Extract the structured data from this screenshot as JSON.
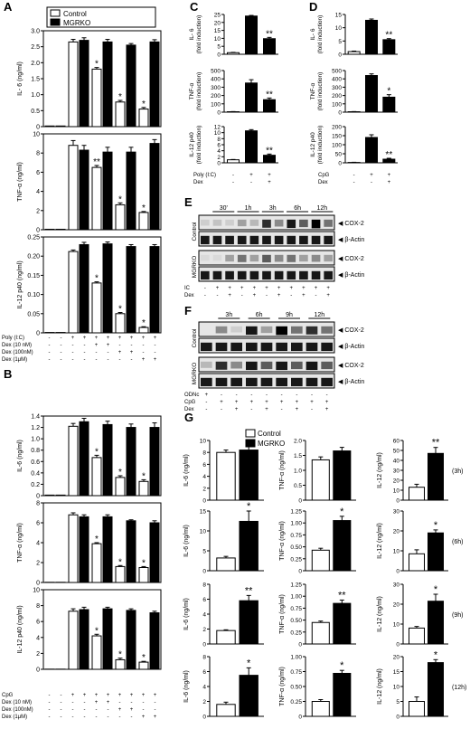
{
  "panels": {
    "A": "A",
    "B": "B",
    "C": "C",
    "D": "D",
    "E": "E",
    "F": "F",
    "G": "G"
  },
  "legend": {
    "control": "Control",
    "mgrko": "MGRKO"
  },
  "chart_data": [
    {
      "id": "A1",
      "type": "bar",
      "ylabel": "IL- 6 (ng/ml)",
      "ylim": [
        0,
        3.0
      ],
      "ticks": [
        "0",
        "0.5",
        "1.0",
        "1.5",
        "2.0",
        "2.5",
        "3.0"
      ],
      "series": [
        {
          "name": "Control",
          "values": [
            0.02,
            2.65,
            1.8,
            0.77,
            0.55
          ]
        },
        {
          "name": "MGRKO",
          "values": [
            0.02,
            2.7,
            2.65,
            2.55,
            2.65
          ]
        }
      ],
      "errors": [
        [
          0,
          0.08,
          0.05,
          0.05,
          0.05
        ],
        [
          0,
          0.08,
          0.08,
          0.05,
          0.07
        ]
      ],
      "stars": [
        "",
        "",
        "*",
        "*",
        "*"
      ]
    },
    {
      "id": "A2",
      "type": "bar",
      "ylabel": "TNF-α (ng/ml)",
      "ylim": [
        0,
        10
      ],
      "ticks": [
        "0",
        "2",
        "4",
        "6",
        "8",
        "10"
      ],
      "series": [
        {
          "name": "Control",
          "values": [
            0.05,
            8.8,
            6.5,
            2.6,
            1.8
          ]
        },
        {
          "name": "MGRKO",
          "values": [
            0.05,
            8.3,
            8.1,
            8.1,
            9.0
          ]
        }
      ],
      "errors": [
        [
          0,
          0.5,
          0.2,
          0.2,
          0.1
        ],
        [
          0,
          0.5,
          0.5,
          0.5,
          0.4
        ]
      ],
      "stars": [
        "",
        "",
        "**",
        "*",
        "*"
      ]
    },
    {
      "id": "A3",
      "type": "bar",
      "ylabel": "IL-12 p40 (ng/ml)",
      "ylim": [
        0,
        0.25
      ],
      "ticks": [
        "0",
        "0.05",
        "0.10",
        "0.15",
        "0.20",
        "0.25"
      ],
      "series": [
        {
          "name": "Control",
          "values": [
            0.001,
            0.212,
            0.13,
            0.05,
            0.014
          ]
        },
        {
          "name": "MGRKO",
          "values": [
            0.001,
            0.23,
            0.232,
            0.225,
            0.225
          ]
        }
      ],
      "errors": [
        [
          0,
          0.004,
          0.003,
          0.003,
          0.002
        ],
        [
          0,
          0.006,
          0.005,
          0.005,
          0.005
        ]
      ],
      "stars": [
        "",
        "",
        "*",
        "*",
        "*"
      ]
    },
    {
      "id": "B1",
      "type": "bar",
      "ylabel": "IL-6 (ng/ml)",
      "ylim": [
        0,
        1.4
      ],
      "ticks": [
        "0",
        "0.2",
        "0.4",
        "0.6",
        "0.8",
        "1.0",
        "1.2",
        "1.4"
      ],
      "series": [
        {
          "name": "Control",
          "values": [
            0.01,
            1.22,
            0.67,
            0.32,
            0.25
          ]
        },
        {
          "name": "MGRKO",
          "values": [
            0.01,
            1.3,
            1.25,
            1.2,
            1.2
          ]
        }
      ],
      "errors": [
        [
          0,
          0.05,
          0.04,
          0.03,
          0.03
        ],
        [
          0,
          0.06,
          0.06,
          0.06,
          0.08
        ]
      ],
      "stars": [
        "",
        "",
        "*",
        "*",
        "*"
      ]
    },
    {
      "id": "B2",
      "type": "bar",
      "ylabel": "TNF-α (ng/ml)",
      "ylim": [
        0,
        8
      ],
      "ticks": [
        "0",
        "2",
        "4",
        "6",
        "8"
      ],
      "series": [
        {
          "name": "Control",
          "values": [
            0.02,
            6.8,
            3.9,
            1.6,
            1.5
          ]
        },
        {
          "name": "MGRKO",
          "values": [
            0.02,
            6.6,
            6.6,
            6.2,
            6.0
          ]
        }
      ],
      "errors": [
        [
          0,
          0.2,
          0.1,
          0.1,
          0.1
        ],
        [
          0,
          0.2,
          0.2,
          0.1,
          0.2
        ]
      ],
      "stars": [
        "",
        "",
        "*",
        "*",
        "*"
      ]
    },
    {
      "id": "B3",
      "type": "bar",
      "ylabel": "IL-12 p40 (ng/ml)",
      "ylim": [
        0,
        10
      ],
      "ticks": [
        "0",
        "2",
        "4",
        "6",
        "8",
        "10"
      ],
      "series": [
        {
          "name": "Control",
          "values": [
            0.02,
            7.3,
            4.2,
            1.2,
            0.9
          ]
        },
        {
          "name": "MGRKO",
          "values": [
            0.02,
            7.5,
            7.6,
            7.4,
            7.1
          ]
        }
      ],
      "errors": [
        [
          0,
          0.3,
          0.2,
          0.2,
          0.1
        ],
        [
          0,
          0.3,
          0.2,
          0.2,
          0.2
        ]
      ],
      "stars": [
        "",
        "",
        "*",
        "*",
        "*"
      ]
    },
    {
      "id": "C1",
      "type": "bar",
      "ylabel": "IL- 6\n(fold induction)",
      "ylim": [
        0,
        25
      ],
      "ticks": [
        "0",
        "5",
        "10",
        "15",
        "20",
        "25"
      ],
      "values": [
        1,
        24,
        9.8
      ],
      "errors": [
        0.2,
        0.4,
        0.8
      ],
      "white": [
        true,
        false,
        false
      ],
      "stars": [
        "",
        "",
        "**"
      ]
    },
    {
      "id": "C2",
      "type": "bar",
      "ylabel": "TNF-α\n(fold induction)",
      "ylim": [
        0,
        500
      ],
      "ticks": [
        "0",
        "100",
        "200",
        "300",
        "400",
        "500"
      ],
      "values": [
        5,
        350,
        150
      ],
      "errors": [
        2,
        40,
        20
      ],
      "white": [
        true,
        false,
        false
      ],
      "stars": [
        "",
        "",
        "**"
      ]
    },
    {
      "id": "C3",
      "type": "bar",
      "ylabel": "IL-12 p40\n(fold induction)",
      "ylim": [
        0,
        12
      ],
      "ticks": [
        "0",
        "2",
        "4",
        "6",
        "8",
        "10",
        "12"
      ],
      "values": [
        1,
        10.6,
        2.5
      ],
      "errors": [
        0.1,
        0.4,
        0.4
      ],
      "white": [
        true,
        false,
        false
      ],
      "stars": [
        "",
        "",
        "**"
      ]
    },
    {
      "id": "D1",
      "type": "bar",
      "ylabel": "IL- 6\n(fold induction)",
      "ylim": [
        0,
        15
      ],
      "ticks": [
        "0",
        "5",
        "10",
        "15"
      ],
      "values": [
        1,
        12.8,
        5.5
      ],
      "errors": [
        0.2,
        0.5,
        0.4
      ],
      "white": [
        true,
        false,
        false
      ],
      "stars": [
        "",
        "",
        "**"
      ]
    },
    {
      "id": "D2",
      "type": "bar",
      "ylabel": "TNF-α\n(fold induction)",
      "ylim": [
        0,
        500
      ],
      "ticks": [
        "0",
        "100",
        "200",
        "300",
        "400",
        "500"
      ],
      "values": [
        5,
        440,
        180
      ],
      "errors": [
        2,
        20,
        30
      ],
      "white": [
        true,
        false,
        false
      ],
      "stars": [
        "",
        "",
        "*"
      ]
    },
    {
      "id": "D3",
      "type": "bar",
      "ylabel": "IL-12 p40\n(fold induction)",
      "ylim": [
        0,
        200
      ],
      "ticks": [
        "0",
        "50",
        "100",
        "150",
        "200"
      ],
      "values": [
        2,
        140,
        20
      ],
      "errors": [
        1,
        15,
        5
      ],
      "white": [
        true,
        false,
        false
      ],
      "stars": [
        "",
        "",
        "**"
      ]
    },
    {
      "id": "G1a",
      "type": "bar",
      "ylabel": "IL-6 (ng/ml)",
      "ylim": [
        0,
        10
      ],
      "ticks": [
        "0",
        "2",
        "4",
        "6",
        "8",
        "10"
      ],
      "values": [
        8.0,
        8.4
      ],
      "errors": [
        0.4,
        0.6
      ],
      "star": ""
    },
    {
      "id": "G2a",
      "type": "bar",
      "ylabel": "TNF-α (ng/ml)",
      "ylim": [
        0,
        2
      ],
      "ticks": [
        "0",
        "0.5",
        "1.0",
        "1.5",
        "2.0"
      ],
      "values": [
        1.35,
        1.65
      ],
      "errors": [
        0.1,
        0.12
      ],
      "star": ""
    },
    {
      "id": "G3a",
      "type": "bar",
      "ylabel": "IL-12 (ng/ml)",
      "ylim": [
        0,
        60
      ],
      "ticks": [
        "0",
        "10",
        "20",
        "30",
        "40",
        "50",
        "60"
      ],
      "values": [
        13,
        47
      ],
      "errors": [
        3,
        6
      ],
      "star": "**"
    },
    {
      "id": "G1b",
      "type": "bar",
      "ylabel": "IL-6 (ng/ml)",
      "ylim": [
        0,
        15
      ],
      "ticks": [
        "0",
        "5",
        "10",
        "15"
      ],
      "values": [
        3.2,
        12.4
      ],
      "errors": [
        0.4,
        2.6
      ],
      "star": "*"
    },
    {
      "id": "G2b",
      "type": "bar",
      "ylabel": "TNF-α (ng/ml)",
      "ylim": [
        0,
        1.25
      ],
      "ticks": [
        "0",
        "0.25",
        "0.50",
        "0.75",
        "1.00",
        "1.25"
      ],
      "values": [
        0.43,
        1.05
      ],
      "errors": [
        0.04,
        0.09
      ],
      "star": "*"
    },
    {
      "id": "G3b",
      "type": "bar",
      "ylabel": "IL-12 (ng/ml)",
      "ylim": [
        0,
        30
      ],
      "ticks": [
        "0",
        "10",
        "20",
        "30"
      ],
      "values": [
        8.5,
        19
      ],
      "errors": [
        2,
        1.5
      ],
      "star": "*"
    },
    {
      "id": "G1c",
      "type": "bar",
      "ylabel": "IL-6 (ng/ml)",
      "ylim": [
        0,
        8
      ],
      "ticks": [
        "0",
        "2",
        "4",
        "6",
        "8"
      ],
      "values": [
        1.8,
        5.8
      ],
      "errors": [
        0.1,
        0.7
      ],
      "star": "**"
    },
    {
      "id": "G2c",
      "type": "bar",
      "ylabel": "TNF-α (ng/ml)",
      "ylim": [
        0,
        1.25
      ],
      "ticks": [
        "0",
        "0.25",
        "0.50",
        "0.75",
        "1.00",
        "1.25"
      ],
      "values": [
        0.45,
        0.85
      ],
      "errors": [
        0.03,
        0.07
      ],
      "star": "**"
    },
    {
      "id": "G3c",
      "type": "bar",
      "ylabel": "IL-12 (ng/ml)",
      "ylim": [
        0,
        30
      ],
      "ticks": [
        "0",
        "10",
        "20",
        "30"
      ],
      "values": [
        8,
        21.5
      ],
      "errors": [
        0.8,
        3.5
      ],
      "star": "*"
    },
    {
      "id": "G1d",
      "type": "bar",
      "ylabel": "IL-6 (ng/ml)",
      "ylim": [
        0,
        8
      ],
      "ticks": [
        "0",
        "2",
        "4",
        "6",
        "8"
      ],
      "values": [
        1.6,
        5.5
      ],
      "errors": [
        0.3,
        1.0
      ],
      "star": "*"
    },
    {
      "id": "G2d",
      "type": "bar",
      "ylabel": "TNF-α (ng/ml)",
      "ylim": [
        0,
        1
      ],
      "ticks": [
        "0",
        "0.25",
        "0.50",
        "0.75",
        "1.00"
      ],
      "values": [
        0.25,
        0.72
      ],
      "errors": [
        0.03,
        0.05
      ],
      "star": "*"
    },
    {
      "id": "G3d",
      "type": "bar",
      "ylabel": "IL-12 (ng/ml)",
      "ylim": [
        0,
        20
      ],
      "ticks": [
        "0",
        "5",
        "10",
        "15",
        "20"
      ],
      "values": [
        5,
        18
      ],
      "errors": [
        1.5,
        1
      ],
      "star": "*"
    }
  ],
  "treatments": {
    "A": {
      "rows": [
        {
          "label": "Poly (I:C)",
          "vals": [
            "-",
            "-",
            "+",
            "+",
            "+",
            "+",
            "+",
            "+",
            "+",
            "+"
          ]
        },
        {
          "label": "Dex (10 nM)",
          "vals": [
            "-",
            "-",
            "-",
            "-",
            "+",
            "+",
            "-",
            "-",
            "-",
            "-"
          ]
        },
        {
          "label": "Dex (100nM)",
          "vals": [
            "-",
            "-",
            "-",
            "-",
            "-",
            "-",
            "+",
            "+",
            "-",
            "-"
          ]
        },
        {
          "label": "Dex (1μM)",
          "vals": [
            "-",
            "-",
            "-",
            "-",
            "-",
            "-",
            "-",
            "-",
            "+",
            "+"
          ]
        }
      ]
    },
    "B": {
      "rows": [
        {
          "label": "CpG",
          "vals": [
            "-",
            "-",
            "+",
            "+",
            "+",
            "+",
            "+",
            "+",
            "+",
            "+"
          ]
        },
        {
          "label": "Dex (10 nM)",
          "vals": [
            "-",
            "-",
            "-",
            "-",
            "+",
            "+",
            "-",
            "-",
            "-",
            "-"
          ]
        },
        {
          "label": "Dex (100nM)",
          "vals": [
            "-",
            "-",
            "-",
            "-",
            "-",
            "-",
            "+",
            "+",
            "-",
            "-"
          ]
        },
        {
          "label": "Dex (1μM)",
          "vals": [
            "-",
            "-",
            "-",
            "-",
            "-",
            "-",
            "-",
            "-",
            "+",
            "+"
          ]
        }
      ]
    },
    "C": {
      "rows": [
        {
          "label": "Poly (I:C)",
          "vals": [
            "-",
            "+",
            "+"
          ]
        },
        {
          "label": "Dex",
          "vals": [
            "-",
            "-",
            "+"
          ]
        }
      ]
    },
    "D": {
      "rows": [
        {
          "label": "CpG",
          "vals": [
            "-",
            "+",
            "+"
          ]
        },
        {
          "label": "Dex",
          "vals": [
            "-",
            "-",
            "+"
          ]
        }
      ]
    }
  },
  "blotE": {
    "times": [
      "30'",
      "1h",
      "3h",
      "6h",
      "12h"
    ],
    "side": [
      "Control",
      "MGRKO"
    ],
    "bands": [
      "COX-2",
      "β-Actin",
      "COX-2",
      "β-Actin"
    ],
    "rows": [
      {
        "label": "IC",
        "vals": [
          "-",
          "+",
          "+",
          "+",
          "+",
          "+",
          "+",
          "+",
          "+",
          "+",
          "+"
        ]
      },
      {
        "label": "Dex",
        "vals": [
          "-",
          "-",
          "+",
          "-",
          "+",
          "-",
          "+",
          "-",
          "+",
          "-",
          "+"
        ]
      }
    ]
  },
  "blotF": {
    "times": [
      "3h",
      "6h",
      "9h",
      "12h"
    ],
    "side": [
      "Control",
      "MGRKO"
    ],
    "bands": [
      "COX-2",
      "β-Actin",
      "COX-2",
      "β-Actin"
    ],
    "rows": [
      {
        "label": "ODNc",
        "vals": [
          "+",
          "-",
          "-",
          "-",
          "-",
          "-",
          "-",
          "-",
          "-"
        ]
      },
      {
        "label": "CpG",
        "vals": [
          "-",
          "+",
          "+",
          "+",
          "+",
          "+",
          "+",
          "+",
          "+"
        ]
      },
      {
        "label": "Dex",
        "vals": [
          "-",
          "-",
          "+",
          "-",
          "+",
          "-",
          "+",
          "-",
          "+"
        ]
      }
    ]
  },
  "timepoints": [
    "(3h)",
    "(6h)",
    "(9h)",
    "(12h)"
  ]
}
